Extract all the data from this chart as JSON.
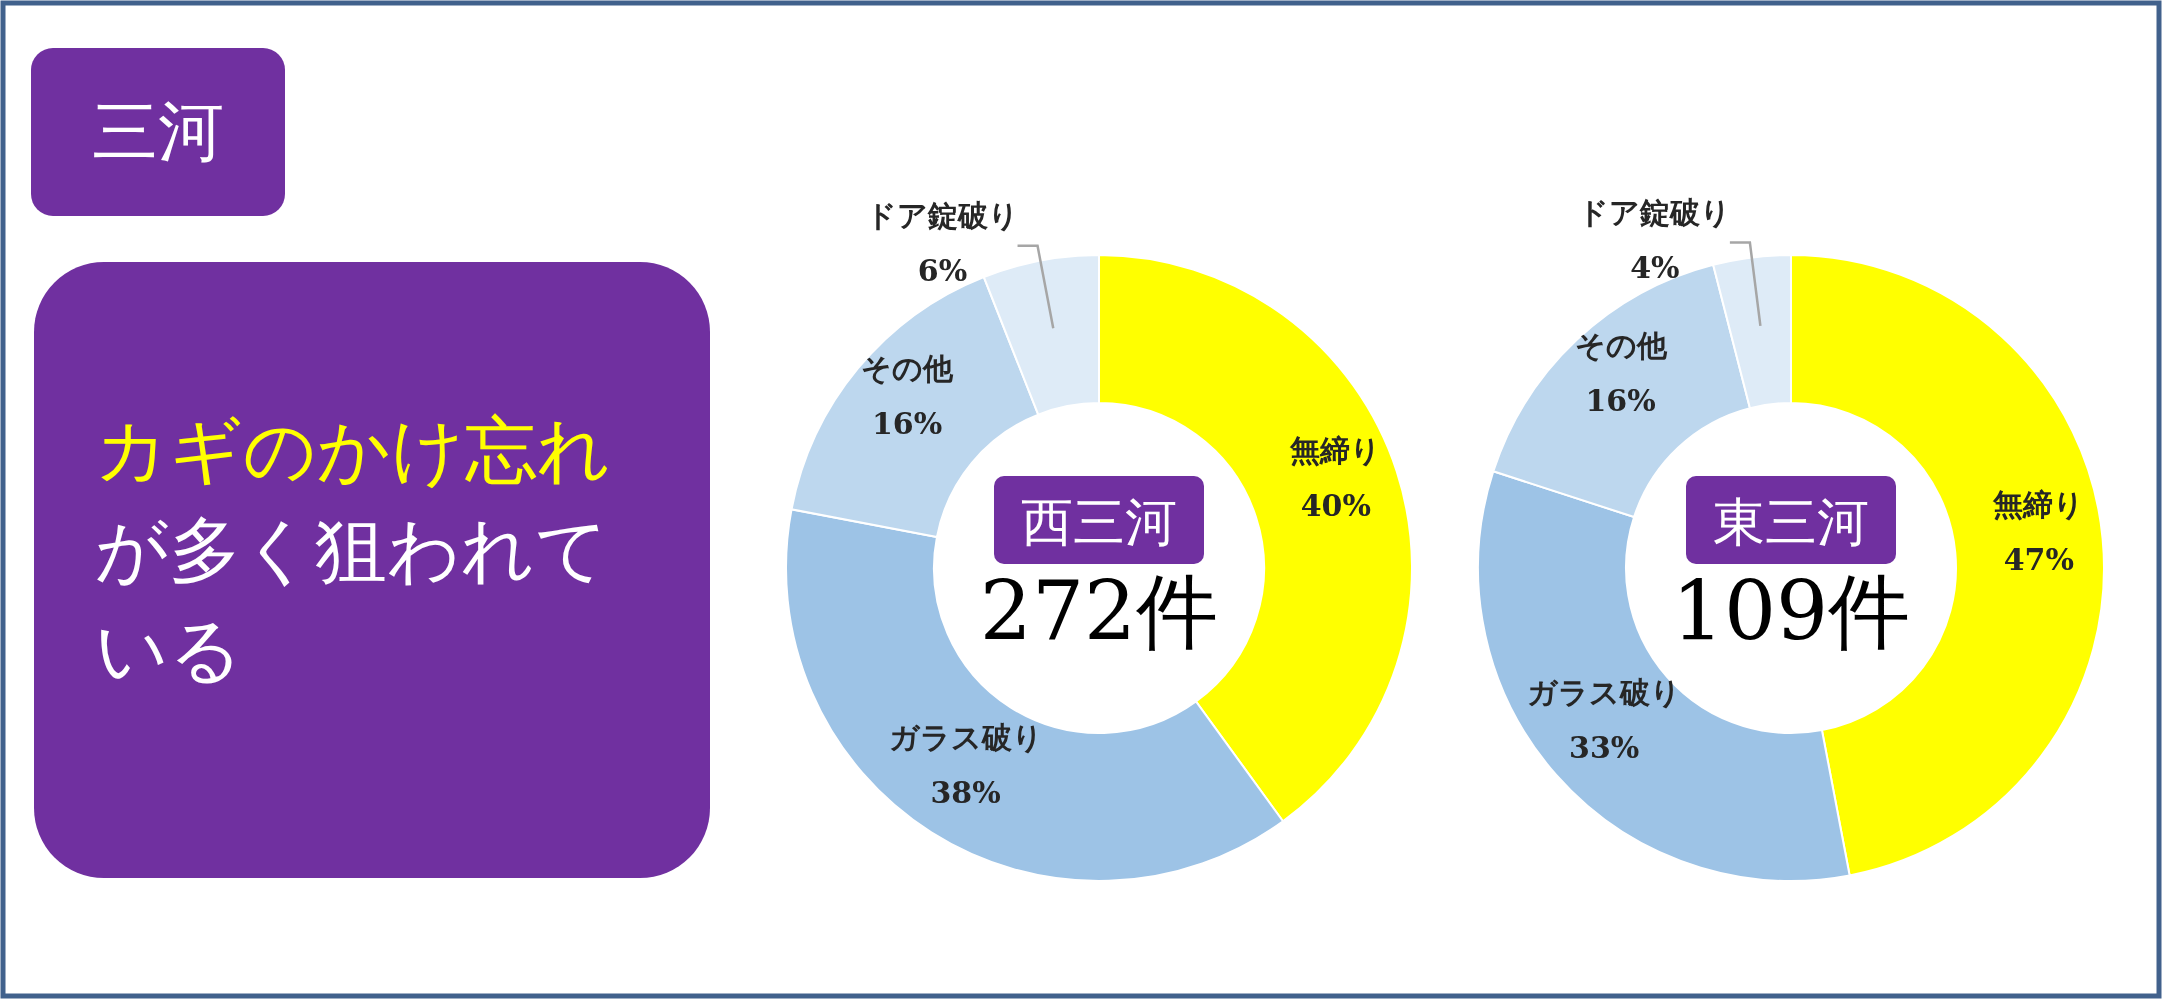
{
  "chart_data": [
    {
      "type": "other",
      "title": "三河",
      "annotations": [
        "カギのかけ忘れ",
        "が多く狙われている"
      ]
    },
    {
      "type": "donut",
      "title": "西三河",
      "annotations": [
        "272件"
      ],
      "categories": [
        "無締り",
        "ガラス破り",
        "その他",
        "ドア錠破り"
      ],
      "values": [
        40,
        38,
        16,
        6
      ],
      "value_labels": [
        "40%",
        "38%",
        "16%",
        "6%"
      ],
      "colors": [
        "#ffff00",
        "#9dc3e6",
        "#bdd7ee",
        "#deebf7"
      ]
    },
    {
      "type": "donut",
      "title": "東三河",
      "annotations": [
        "109件"
      ],
      "categories": [
        "無締り",
        "ガラス破り",
        "その他",
        "ドア錠破り"
      ],
      "values": [
        47,
        33,
        16,
        4
      ],
      "value_labels": [
        "47%",
        "33%",
        "16%",
        "4%"
      ],
      "colors": [
        "#ffff00",
        "#9dc3e6",
        "#bdd7ee",
        "#deebf7"
      ]
    }
  ]
}
